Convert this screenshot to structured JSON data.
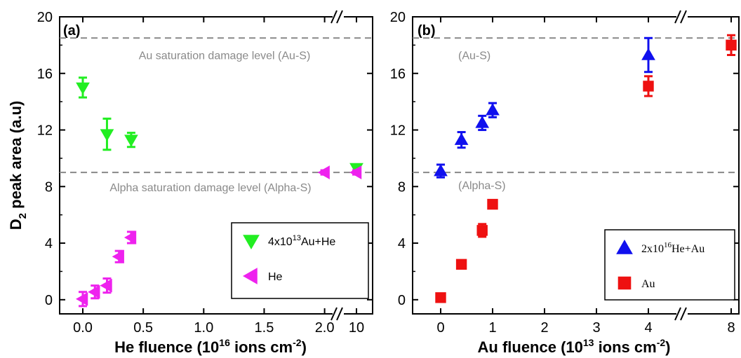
{
  "chart_data": [
    {
      "type": "scatter",
      "panel_label": "(a)",
      "xlabel": {
        "main": "He fluence (10",
        "sup1": "16",
        "mid": " ions cm",
        "sup2": "-2",
        "end": ")"
      },
      "ylabel": {
        "main": "D",
        "sub": "2",
        "end": " peak area (a.u)"
      },
      "ylim": [
        -1,
        20
      ],
      "yticks": [
        "0",
        "4",
        "8",
        "12",
        "16",
        "20"
      ],
      "x_broken": true,
      "xticks": [
        "0.0",
        "0.5",
        "1.0",
        "1.5",
        "2.0",
        "10"
      ],
      "reference_lines": [
        {
          "y": 18.5,
          "label": "Au saturation damage level (Au-S)"
        },
        {
          "y": 9.0,
          "label": "Alpha saturation damage level (Alpha-S)"
        }
      ],
      "legend_position": "bottom-right",
      "series": [
        {
          "name": {
            "pre": "4x10",
            "sup": "13",
            "post": "Au+He"
          },
          "marker": "triangle-down",
          "color": "#22ee22",
          "points": [
            {
              "x": "0.0",
              "y": 15.0,
              "err": 0.7
            },
            {
              "x": "0.2",
              "y": 11.7,
              "err": 1.1
            },
            {
              "x": "0.4",
              "y": 11.3,
              "err": 0.5
            },
            {
              "x": "10",
              "y": 9.3,
              "err": 0.2
            }
          ]
        },
        {
          "name": {
            "pre": "He",
            "sup": "",
            "post": ""
          },
          "marker": "triangle-left",
          "color": "#ee22ee",
          "points": [
            {
              "x": "0.0",
              "y": 0.05,
              "err": 0.5
            },
            {
              "x": "0.1",
              "y": 0.55,
              "err": 0.45
            },
            {
              "x": "0.2",
              "y": 1.0,
              "err": 0.5
            },
            {
              "x": "0.3",
              "y": 3.05,
              "err": 0.4
            },
            {
              "x": "0.4",
              "y": 4.4,
              "err": 0.4
            },
            {
              "x": "2.0",
              "y": 9.0,
              "err": 0.15
            },
            {
              "x": "10",
              "y": 9.0,
              "err": 0.15
            }
          ]
        }
      ]
    },
    {
      "type": "scatter",
      "panel_label": "(b)",
      "xlabel": {
        "main": "Au fluence (10",
        "sup1": "13",
        "mid": " ions cm",
        "sup2": "-2",
        "end": ")"
      },
      "ylim": [
        -1,
        20
      ],
      "yticks": [
        "0",
        "4",
        "8",
        "12",
        "16",
        "20"
      ],
      "x_broken": true,
      "xticks": [
        "0",
        "1",
        "2",
        "3",
        "4",
        "8"
      ],
      "reference_lines": [
        {
          "y": 18.5,
          "label": "(Au-S)"
        },
        {
          "y": 9.0,
          "label": "(Alpha-S)"
        }
      ],
      "legend_position": "bottom-right",
      "series": [
        {
          "name": {
            "pre": "2x10",
            "sup": "16",
            "post": "He+Au"
          },
          "marker": "triangle-up",
          "color": "#1010ee",
          "points": [
            {
              "x": "0",
              "y": 9.1,
              "err": 0.45
            },
            {
              "x": "0.4",
              "y": 11.3,
              "err": 0.55
            },
            {
              "x": "0.8",
              "y": 12.5,
              "err": 0.5
            },
            {
              "x": "1",
              "y": 13.4,
              "err": 0.5
            },
            {
              "x": "4",
              "y": 17.3,
              "err": 1.2
            }
          ]
        },
        {
          "name": {
            "pre": "Au",
            "sup": "",
            "post": ""
          },
          "marker": "square",
          "color": "#ee1111",
          "points": [
            {
              "x": "0",
              "y": 0.15,
              "err": 0.25
            },
            {
              "x": "0.4",
              "y": 2.5,
              "err": 0.25
            },
            {
              "x": "0.8",
              "y": 4.9,
              "err": 0.45
            },
            {
              "x": "1",
              "y": 6.75,
              "err": 0.25
            },
            {
              "x": "4",
              "y": 15.1,
              "err": 0.7
            },
            {
              "x": "8",
              "y": 18.0,
              "err": 0.7
            }
          ]
        }
      ]
    }
  ]
}
